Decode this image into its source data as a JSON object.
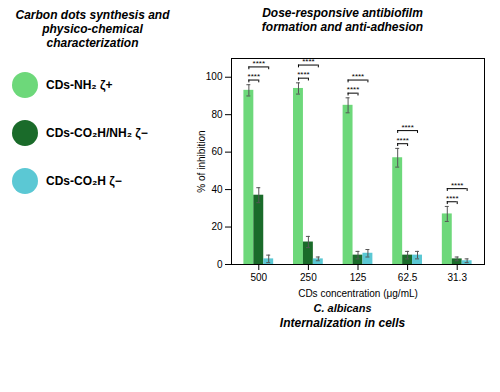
{
  "chart_data": {
    "type": "bar",
    "title": "Dose-responsive antibiofilm\nformation and anti-adhesion",
    "xlabel": "CDs concentration (μg/mL)",
    "ylabel": "% of inhibition",
    "categories": [
      "500",
      "250",
      "125",
      "62.5",
      "31.3"
    ],
    "series": [
      {
        "name": "CDs-NH₂ ζ+",
        "color": "#6dd87a",
        "values": [
          93,
          94,
          85,
          57,
          27
        ],
        "errors": [
          3,
          3,
          4,
          5,
          4
        ]
      },
      {
        "name": "CDs-CO₂H/NH₂ ζ−",
        "color": "#1a6b2a",
        "values": [
          37,
          12,
          5,
          5,
          3
        ],
        "errors": [
          4,
          3,
          2,
          2,
          1
        ]
      },
      {
        "name": "CDs-CO₂H ζ−",
        "color": "#5bc8d4",
        "values": [
          3,
          3,
          6,
          5,
          2
        ],
        "errors": [
          2,
          1,
          2,
          2,
          1
        ]
      }
    ],
    "ylim": [
      0,
      110
    ],
    "yticks": [
      0,
      20,
      40,
      60,
      80,
      100
    ],
    "annotations": [
      {
        "text": "****",
        "series": [
          "CDs-NH₂ ζ+",
          "CDs-CO₂H/NH₂ ζ−"
        ]
      },
      {
        "text": "****",
        "series": [
          "CDs-NH₂ ζ+",
          "CDs-CO₂H ζ−"
        ]
      },
      {
        "text": "Carbon dots synthesis  and\nphysico-chemical\ncharacterization"
      },
      {
        "text": "C. albicans"
      },
      {
        "text": "Internalization in cells"
      }
    ]
  }
}
